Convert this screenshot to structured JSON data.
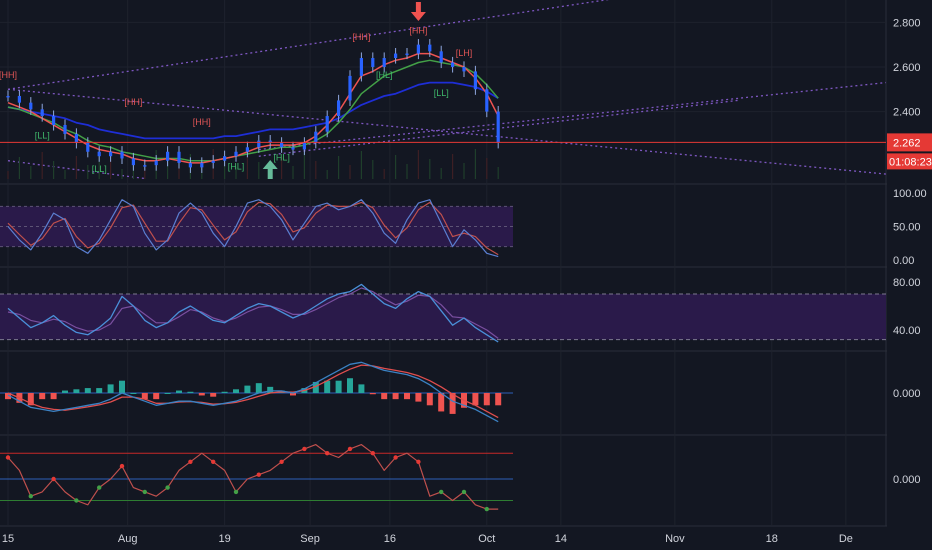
{
  "chart_data": {
    "type": "line",
    "main": {
      "y_ticks": [
        "2.800",
        "2.600",
        "2.400"
      ],
      "ylim": [
        2.08,
        2.9
      ],
      "last_price": "2.262",
      "countdown": "01:08:23",
      "price_series": [
        2.47,
        2.44,
        2.41,
        2.38,
        2.34,
        2.3,
        2.26,
        2.22,
        2.2,
        2.22,
        2.19,
        2.16,
        2.16,
        2.18,
        2.22,
        2.17,
        2.15,
        2.17,
        2.18,
        2.2,
        2.22,
        2.24,
        2.27,
        2.26,
        2.24,
        2.23,
        2.26,
        2.31,
        2.38,
        2.45,
        2.56,
        2.64,
        2.6,
        2.64,
        2.66,
        2.66,
        2.7,
        2.67,
        2.62,
        2.6,
        2.58,
        2.5,
        2.4,
        2.26
      ],
      "ema_fast": [
        2.44,
        2.42,
        2.4,
        2.37,
        2.34,
        2.31,
        2.28,
        2.25,
        2.23,
        2.22,
        2.21,
        2.19,
        2.18,
        2.18,
        2.19,
        2.18,
        2.17,
        2.17,
        2.18,
        2.19,
        2.2,
        2.22,
        2.24,
        2.25,
        2.25,
        2.25,
        2.26,
        2.29,
        2.34,
        2.4,
        2.48,
        2.56,
        2.58,
        2.61,
        2.63,
        2.64,
        2.66,
        2.66,
        2.64,
        2.62,
        2.6,
        2.55,
        2.48,
        2.38
      ],
      "ema_mid": [
        2.42,
        2.41,
        2.39,
        2.37,
        2.35,
        2.32,
        2.3,
        2.27,
        2.25,
        2.24,
        2.22,
        2.21,
        2.2,
        2.19,
        2.19,
        2.19,
        2.18,
        2.18,
        2.18,
        2.19,
        2.2,
        2.21,
        2.22,
        2.23,
        2.24,
        2.24,
        2.25,
        2.27,
        2.3,
        2.35,
        2.41,
        2.48,
        2.52,
        2.56,
        2.58,
        2.6,
        2.62,
        2.63,
        2.62,
        2.61,
        2.6,
        2.57,
        2.52,
        2.46
      ],
      "ema_slow": [
        2.42,
        2.41,
        2.4,
        2.39,
        2.38,
        2.37,
        2.35,
        2.34,
        2.32,
        2.31,
        2.3,
        2.29,
        2.28,
        2.28,
        2.28,
        2.28,
        2.28,
        2.28,
        2.28,
        2.29,
        2.29,
        2.3,
        2.31,
        2.32,
        2.32,
        2.32,
        2.33,
        2.34,
        2.35,
        2.37,
        2.4,
        2.43,
        2.45,
        2.47,
        2.48,
        2.5,
        2.52,
        2.53,
        2.53,
        2.53,
        2.52,
        2.51,
        2.49,
        2.46
      ],
      "pivot_labels": [
        {
          "t": "[HH]",
          "i": 0,
          "y": 2.55,
          "kind": "high"
        },
        {
          "t": "[LL]",
          "i": 3,
          "y": 2.28,
          "kind": "low"
        },
        {
          "t": "[HH]",
          "i": 11,
          "y": 2.43,
          "kind": "high"
        },
        {
          "t": "[LL]",
          "i": 8,
          "y": 2.13,
          "kind": "low"
        },
        {
          "t": "[HH]",
          "i": 17,
          "y": 2.34,
          "kind": "high"
        },
        {
          "t": "[HL]",
          "i": 20,
          "y": 2.14,
          "kind": "low"
        },
        {
          "t": "[HL]",
          "i": 24,
          "y": 2.18,
          "kind": "low"
        },
        {
          "t": "[HH]",
          "i": 31,
          "y": 2.72,
          "kind": "high"
        },
        {
          "t": "[HH]",
          "i": 36,
          "y": 2.75,
          "kind": "high"
        },
        {
          "t": "[HL]",
          "i": 33,
          "y": 2.55,
          "kind": "low"
        },
        {
          "t": "[LL]",
          "i": 38,
          "y": 2.47,
          "kind": "low"
        },
        {
          "t": "[LH]",
          "i": 40,
          "y": 2.65,
          "kind": "high"
        }
      ],
      "arrow_down_index": 36,
      "arrow_up_index": 23
    },
    "stoch": {
      "y_ticks": [
        "100.00",
        "50.00",
        "0.00"
      ],
      "ylim": [
        0,
        100
      ],
      "band": [
        20,
        80
      ],
      "k": [
        50,
        30,
        15,
        40,
        70,
        60,
        20,
        10,
        30,
        60,
        90,
        80,
        40,
        15,
        30,
        70,
        85,
        70,
        40,
        20,
        50,
        85,
        90,
        80,
        60,
        30,
        55,
        80,
        85,
        75,
        80,
        90,
        70,
        40,
        25,
        60,
        85,
        90,
        55,
        20,
        45,
        30,
        10,
        5
      ],
      "d": [
        55,
        38,
        22,
        32,
        55,
        62,
        35,
        18,
        25,
        48,
        78,
        82,
        55,
        28,
        28,
        55,
        78,
        75,
        52,
        30,
        42,
        72,
        86,
        84,
        68,
        42,
        48,
        70,
        82,
        80,
        80,
        86,
        78,
        52,
        33,
        48,
        75,
        86,
        68,
        35,
        40,
        35,
        18,
        8
      ]
    },
    "rsi": {
      "y_ticks": [
        "80.00",
        "40.00"
      ],
      "ylim": [
        25,
        90
      ],
      "band": [
        32,
        70
      ],
      "rsi": [
        58,
        50,
        42,
        46,
        52,
        44,
        38,
        36,
        42,
        50,
        68,
        60,
        48,
        42,
        46,
        55,
        60,
        54,
        48,
        46,
        52,
        58,
        62,
        60,
        55,
        50,
        54,
        60,
        66,
        70,
        72,
        78,
        70,
        62,
        58,
        66,
        72,
        68,
        56,
        44,
        50,
        42,
        36,
        30
      ],
      "signal": [
        55,
        53,
        48,
        46,
        49,
        47,
        42,
        39,
        40,
        45,
        58,
        60,
        53,
        46,
        46,
        51,
        57,
        55,
        50,
        47,
        50,
        55,
        59,
        60,
        57,
        53,
        53,
        57,
        62,
        67,
        70,
        75,
        72,
        66,
        61,
        64,
        69,
        68,
        61,
        51,
        50,
        45,
        40,
        33
      ]
    },
    "macd": {
      "y_ticks": [
        "0.000"
      ],
      "ylim": [
        -0.1,
        0.1
      ],
      "macd": [
        -0.005,
        -0.02,
        -0.035,
        -0.04,
        -0.045,
        -0.04,
        -0.035,
        -0.03,
        -0.025,
        -0.015,
        0.0,
        -0.01,
        -0.02,
        -0.03,
        -0.025,
        -0.02,
        -0.02,
        -0.025,
        -0.03,
        -0.025,
        -0.02,
        -0.01,
        0.0,
        0.005,
        0.005,
        0.0,
        0.01,
        0.025,
        0.04,
        0.055,
        0.07,
        0.075,
        0.065,
        0.055,
        0.05,
        0.045,
        0.035,
        0.02,
        0.0,
        -0.02,
        -0.03,
        -0.04,
        -0.055,
        -0.07
      ],
      "signal": [
        0.0,
        -0.012,
        -0.025,
        -0.035,
        -0.04,
        -0.042,
        -0.038,
        -0.034,
        -0.029,
        -0.022,
        -0.01,
        -0.01,
        -0.015,
        -0.025,
        -0.025,
        -0.022,
        -0.021,
        -0.023,
        -0.027,
        -0.026,
        -0.023,
        -0.016,
        -0.008,
        0.0,
        0.003,
        0.002,
        0.006,
        0.016,
        0.03,
        0.045,
        0.058,
        0.068,
        0.066,
        0.06,
        0.055,
        0.05,
        0.042,
        0.03,
        0.015,
        -0.003,
        -0.018,
        -0.03,
        -0.045,
        -0.06
      ]
    },
    "osc": {
      "y_ticks": [
        "0.000"
      ],
      "ylim": [
        -0.1,
        0.1
      ],
      "upper": 0.06,
      "lower": -0.05,
      "line": [
        0.05,
        0.02,
        -0.04,
        -0.03,
        0.0,
        -0.03,
        -0.05,
        -0.06,
        -0.02,
        0.0,
        0.03,
        -0.02,
        -0.03,
        -0.04,
        -0.02,
        0.02,
        0.04,
        0.06,
        0.04,
        0.02,
        -0.03,
        0.0,
        0.01,
        0.02,
        0.04,
        0.06,
        0.07,
        0.08,
        0.06,
        0.05,
        0.07,
        0.08,
        0.06,
        0.02,
        0.05,
        0.06,
        0.04,
        -0.04,
        -0.03,
        -0.05,
        -0.03,
        -0.06,
        -0.07,
        -0.07
      ]
    },
    "x_ticks": [
      {
        "label": "15",
        "i": 0
      },
      {
        "label": "Aug",
        "i": 10.5
      },
      {
        "label": "19",
        "i": 19
      },
      {
        "label": "Sep",
        "i": 26.5
      },
      {
        "label": "16",
        "i": 33.5
      },
      {
        "label": "Oct",
        "i": 42
      },
      {
        "label": "14",
        "i": 48.5
      },
      {
        "label": "Nov",
        "i": 58.5
      },
      {
        "label": "18",
        "i": 67
      },
      {
        "label": "De",
        "i": 73.5
      }
    ],
    "colors": {
      "bg": "#131722",
      "grid": "#1e222d",
      "price": "#2962ff",
      "ema_fast": "#ef5350",
      "ema_mid": "#43a047",
      "ema_slow": "#1e2ed6",
      "band_fill": "#2a1a4a",
      "stoch_k": "#5b7fd1",
      "stoch_d": "#c0504d",
      "rsi": "#4a90d9",
      "rsi_signal": "#7a4fa0",
      "macd": "#3b82c4",
      "macd_signal": "#e04e4e",
      "hist_pos": "#26a69a",
      "hist_neg": "#ef5350",
      "trend_line": "#7e57c2",
      "last_price_tag": "#e53935",
      "up_arrow": "#66bb9a",
      "down_arrow": "#ef5350"
    }
  }
}
